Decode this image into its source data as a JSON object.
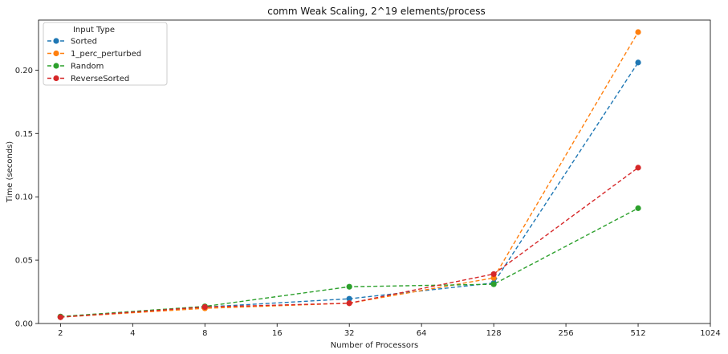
{
  "chart_data": {
    "type": "line",
    "title": "comm Weak Scaling, 2^19 elements/process",
    "xlabel": "Number of Processors",
    "ylabel": "Time (seconds)",
    "x_scale": "log2",
    "x_ticks": [
      2,
      4,
      8,
      16,
      32,
      64,
      128,
      256,
      512,
      1024
    ],
    "x_tick_labels": [
      "2",
      "4",
      "8",
      "16",
      "32",
      "64",
      "128",
      "256",
      "512",
      "1024"
    ],
    "xlim": [
      1.62,
      1024
    ],
    "y_ticks": [
      0.0,
      0.05,
      0.1,
      0.15,
      0.2
    ],
    "y_tick_labels": [
      "0.00",
      "0.05",
      "0.10",
      "0.15",
      "0.20"
    ],
    "ylim": [
      0,
      0.2395
    ],
    "x": [
      2,
      8,
      32,
      128,
      512
    ],
    "legend_title": "Input Type",
    "legend_position": "upper-left",
    "line_style": "dashed",
    "marker": "circle",
    "series": [
      {
        "name": "Sorted",
        "color": "#1f77b4",
        "values": [
          0.005,
          0.013,
          0.0195,
          0.032,
          0.206
        ]
      },
      {
        "name": "1_perc_perturbed",
        "color": "#ff7f0e",
        "values": [
          0.005,
          0.012,
          0.016,
          0.036,
          0.23
        ]
      },
      {
        "name": "Random",
        "color": "#2ca02c",
        "values": [
          0.0055,
          0.0135,
          0.029,
          0.031,
          0.091
        ]
      },
      {
        "name": "ReverseSorted",
        "color": "#d62728",
        "values": [
          0.005,
          0.013,
          0.016,
          0.039,
          0.123
        ]
      }
    ]
  }
}
